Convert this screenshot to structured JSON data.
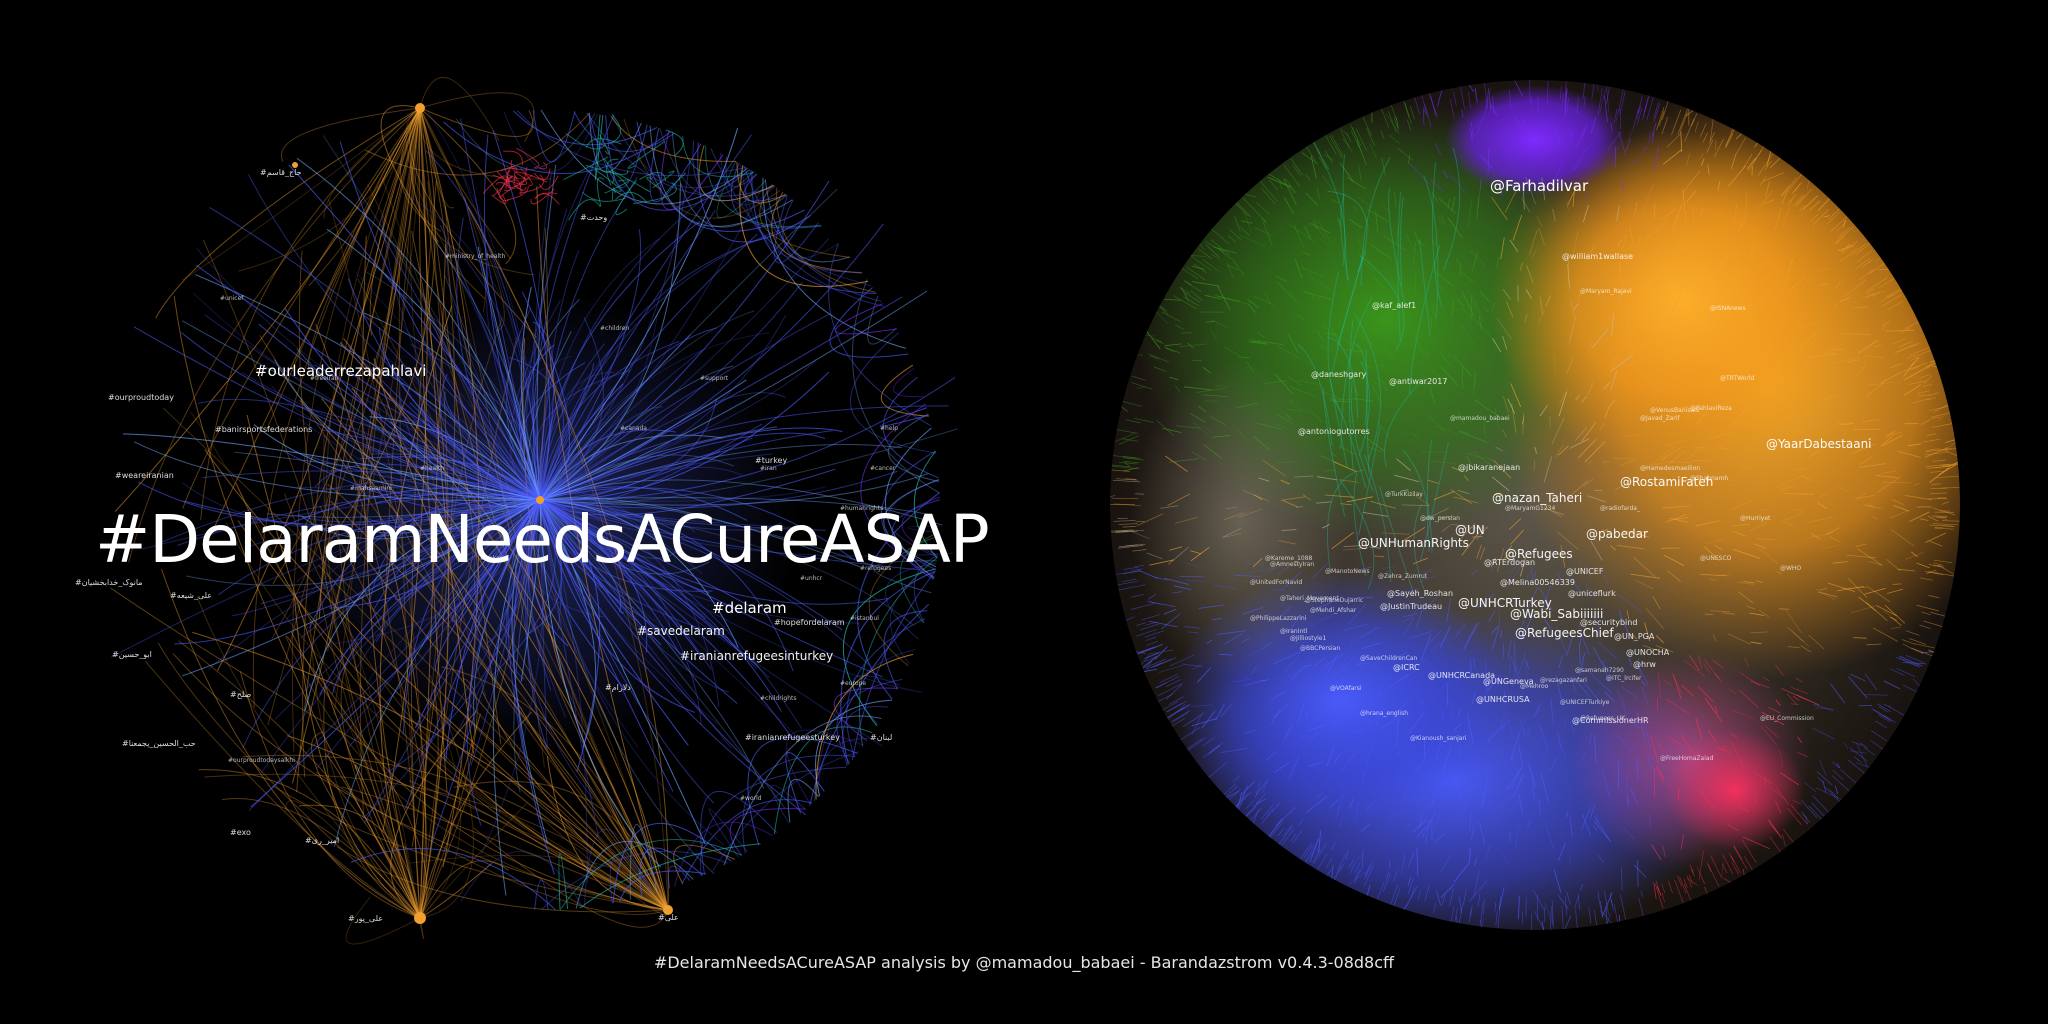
{
  "footer": {
    "caption": "#DelaramNeedsACureASAP analysis by @mamadou_babaei - Barandazstrom v0.4.3-08d8cff"
  },
  "colors": {
    "background": "#000000",
    "orange": "#f0a030",
    "blue": "#4d5cff",
    "light_blue": "#6fa8ff",
    "purple": "#7a2cff",
    "green": "#3c9a20",
    "red": "#ff3050",
    "teal": "#20c0b0"
  },
  "hashtag_graph": {
    "hero_label": "#DelaramNeedsACureASAP",
    "labels_large": [
      "#ourleaderrezapahlavi",
      "#delaram",
      "#savedelaram",
      "#iranianrefugeesinturkey"
    ],
    "labels_medium": [
      "#banirsportsfederations",
      "#ourproudtoday",
      "#weareiranian",
      "#مانوک_خدابخشیان",
      "#علی_شیعه",
      "#ابو_حسین",
      "#صلح",
      "#حب_الحسین_يجمعنا",
      "#exo",
      "#امیر_ری",
      "#turkey",
      "#hopefordelaram",
      "#دلارام",
      "#iranianrefugeesturkey",
      "#حاج_قاسم",
      "#وحدت",
      "#لبنان",
      "#علی_پور",
      "#علی"
    ],
    "labels_small": [
      "#ourproudtodaysalkhi",
      "#ministry_of_health",
      "#unhcr",
      "#refugees",
      "#humanrights",
      "#iran",
      "#istanbul",
      "#europe",
      "#help",
      "#cancer",
      "#children",
      "#canada",
      "#freeiran",
      "#mahsaamini",
      "#unicef",
      "#support",
      "#childrights",
      "#world",
      "#health",
      "#ankara"
    ]
  },
  "mention_graph": {
    "labels_large": [
      "@Farhadilvar",
      "@UN",
      "@UNHumanRights",
      "@Refugees",
      "@UNHCRTurkey",
      "@pabedar",
      "@nazan_Taheri",
      "@YaarDabestaani",
      "@RostamiFateh",
      "@Wabi_Sabiiiiiii",
      "@RefugeesChief"
    ],
    "labels_medium": [
      "@william1wallase",
      "@kaf_alef1",
      "@antoniogutorres",
      "@jbikaranejaan",
      "@Sayeh_Roshan",
      "@UNOCHA",
      "@hrw",
      "@uniceflurk",
      "@UNICEF",
      "@Melina00546339",
      "@UN_PGA",
      "@JustinTrudeau",
      "@UNHCRCanada",
      "@UNGeneva",
      "@antiwar2017",
      "@daneshgary",
      "@CommissionerHR",
      "@RTErdogan",
      "@securitybind",
      "@UNHCRUSA",
      "@ICRC"
    ],
    "labels_small": [
      "@TurkKizilay",
      "@MaryamG1234",
      "@Zehra_Zumrut",
      "@SaveChildrenCan",
      "@Refugees_UK",
      "@ManotoNews",
      "@AmnestyIran",
      "@UnitedForNavid",
      "@Mehdi_Afshar",
      "@IranIntl",
      "@BBCPersian",
      "@VOAfarsi",
      "@hrana_english",
      "@Kianoush_sanjari",
      "@Javad_Zarif",
      "@Hamedesmaeilion",
      "@PahlaviReza",
      "@ISNAnews",
      "@TRTWorld",
      "@Hurriyet",
      "@WHO",
      "@UNESCO",
      "@EU_Commission",
      "@FreeHomaZaiad",
      "@StephaneDujarric",
      "@PhilippeLazzarini",
      "@rezagazanfari",
      "@samanah7290",
      "@ITC_lrcifer",
      "@Mehroo",
      "@Kareme_1088",
      "@UNICEFTurkiye",
      "@Taheri_Movement",
      "@Jilliostyle1",
      "@Shabnamh",
      "@mamadou_babaei",
      "@VenusBanisadr",
      "@Maryam_Rajavi",
      "@dw_persian",
      "@radiofarda_"
    ]
  }
}
